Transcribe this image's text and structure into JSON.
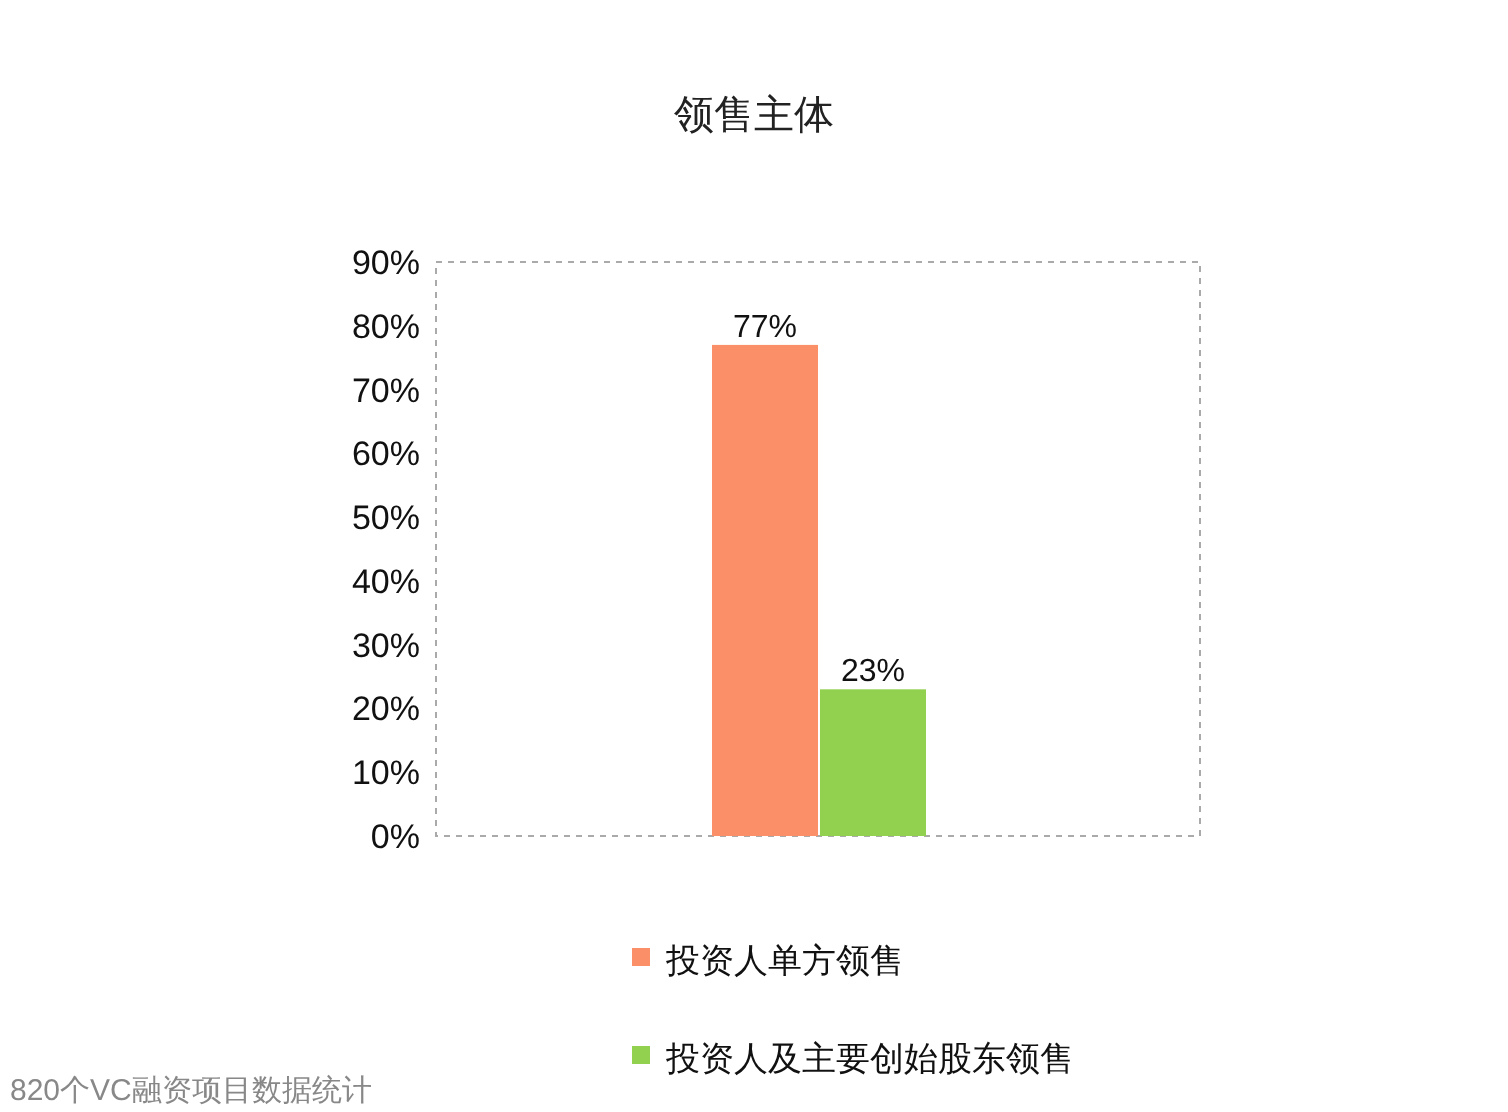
{
  "chart_data": {
    "type": "bar",
    "title": "领售主体",
    "categories": [
      null
    ],
    "series": [
      {
        "name": "投资人单方领售",
        "color": "#fb8f68",
        "values": [
          77
        ],
        "value_labels": [
          "77%"
        ]
      },
      {
        "name": "投资人及主要创始股东领售",
        "color": "#92d050",
        "values": [
          23
        ],
        "value_labels": [
          "23%"
        ]
      }
    ],
    "ylim": [
      0,
      90
    ],
    "yticks": [
      {
        "value": 0,
        "label": "0%"
      },
      {
        "value": 10,
        "label": "10%"
      },
      {
        "value": 20,
        "label": "20%"
      },
      {
        "value": 30,
        "label": "30%"
      },
      {
        "value": 40,
        "label": "40%"
      },
      {
        "value": 50,
        "label": "50%"
      },
      {
        "value": 60,
        "label": "60%"
      },
      {
        "value": 70,
        "label": "70%"
      },
      {
        "value": 80,
        "label": "80%"
      },
      {
        "value": 90,
        "label": "90%"
      }
    ],
    "grid": false,
    "legend": "bottom",
    "annotations": [
      "820个VC融资项目数据统计"
    ]
  }
}
